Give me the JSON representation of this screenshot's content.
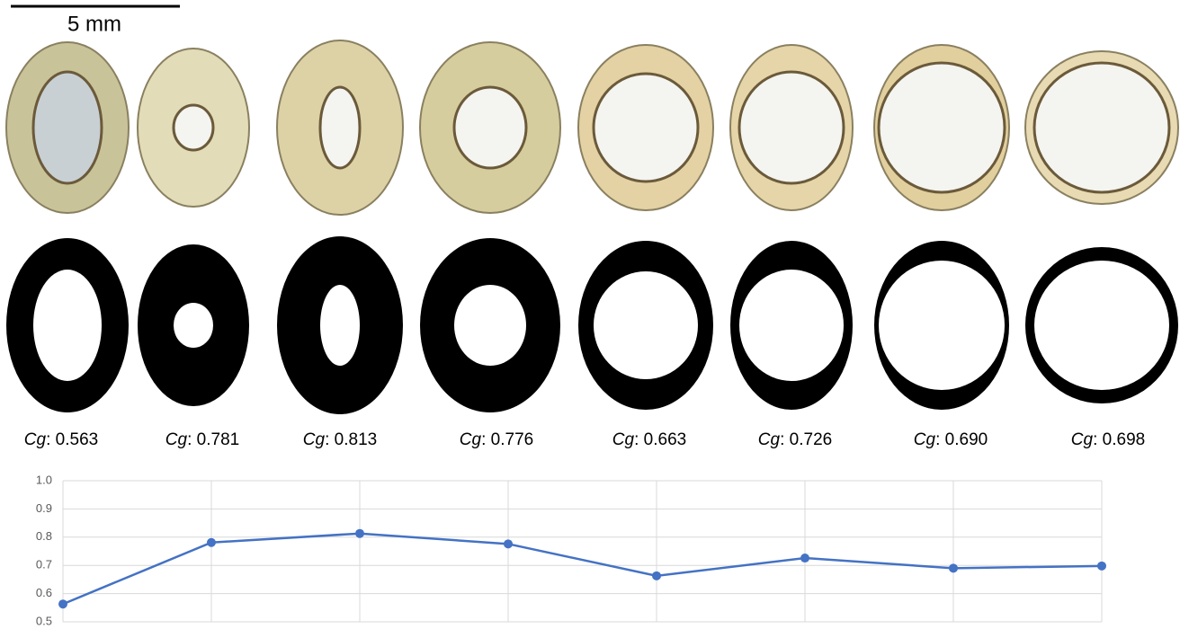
{
  "scale_bar": "5 mm",
  "chart_data": {
    "type": "line",
    "categories": [
      null,
      null,
      null,
      null,
      null,
      null,
      null,
      null
    ],
    "series": [
      {
        "color": "#4472c4",
        "values": [
          0.563,
          0.781,
          0.813,
          0.776,
          0.663,
          0.726,
          0.69,
          0.698
        ],
        "value_labels": [
          "Cg: 0.563",
          "Cg: 0.781",
          "Cg: 0.813",
          "Cg: 0.776",
          "Cg: 0.663",
          "Cg: 0.726",
          "Cg: 0.690",
          "Cg: 0.698"
        ]
      }
    ],
    "ylim": [
      0.5,
      1.0
    ],
    "yticks": [
      0.5,
      0.6,
      0.7,
      0.8,
      0.9,
      {
        "value": 1.0,
        "label": "1.0"
      }
    ],
    "grid": true
  }
}
